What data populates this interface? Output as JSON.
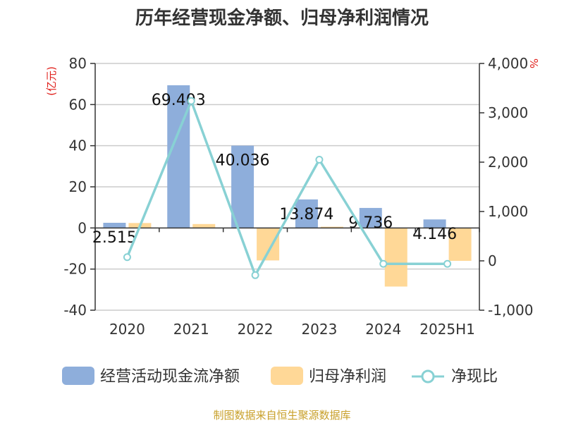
{
  "chart_data": {
    "type": "bar",
    "title": "历年经营现金净额、归母净利润情况",
    "categories": [
      "2020",
      "2021",
      "2022",
      "2023",
      "2024",
      "2025H1"
    ],
    "left_axis": {
      "unit": "(亿元)",
      "ylim": [
        -40,
        80
      ],
      "ticks": [
        "80",
        "60",
        "40",
        "20",
        "0",
        "-20",
        "-40"
      ],
      "tick_values": [
        80,
        60,
        40,
        20,
        0,
        -20,
        -40
      ]
    },
    "right_axis": {
      "unit": "%",
      "ylim": [
        -1000,
        4000
      ],
      "ticks": [
        "4,000",
        "3,000",
        "2,000",
        "1,000",
        "0",
        "-1,000"
      ],
      "tick_values": [
        4000,
        3000,
        2000,
        1000,
        0,
        -1000
      ]
    },
    "series": [
      {
        "name": "经营活动现金流净额",
        "type": "bar",
        "axis": "left",
        "color": "#8eaedb",
        "values": [
          2.515,
          69.403,
          40.036,
          13.874,
          9.736,
          4.146
        ],
        "labels": [
          "2.515",
          "69.403",
          "40.036",
          "13.874",
          "9.736",
          "4.146"
        ]
      },
      {
        "name": "归母净利润",
        "type": "bar",
        "axis": "left",
        "color": "#ffd897",
        "values": [
          2.4,
          1.9,
          -15.8,
          0.6,
          -28.5,
          -16.0
        ]
      },
      {
        "name": "净现比",
        "type": "line",
        "axis": "right",
        "color": "#88d1d4",
        "values": [
          75,
          3240,
          -290,
          2050,
          -60,
          -60
        ]
      }
    ],
    "grid": true,
    "legend": "bottom"
  },
  "source": "制图数据来自恒生聚源数据库"
}
